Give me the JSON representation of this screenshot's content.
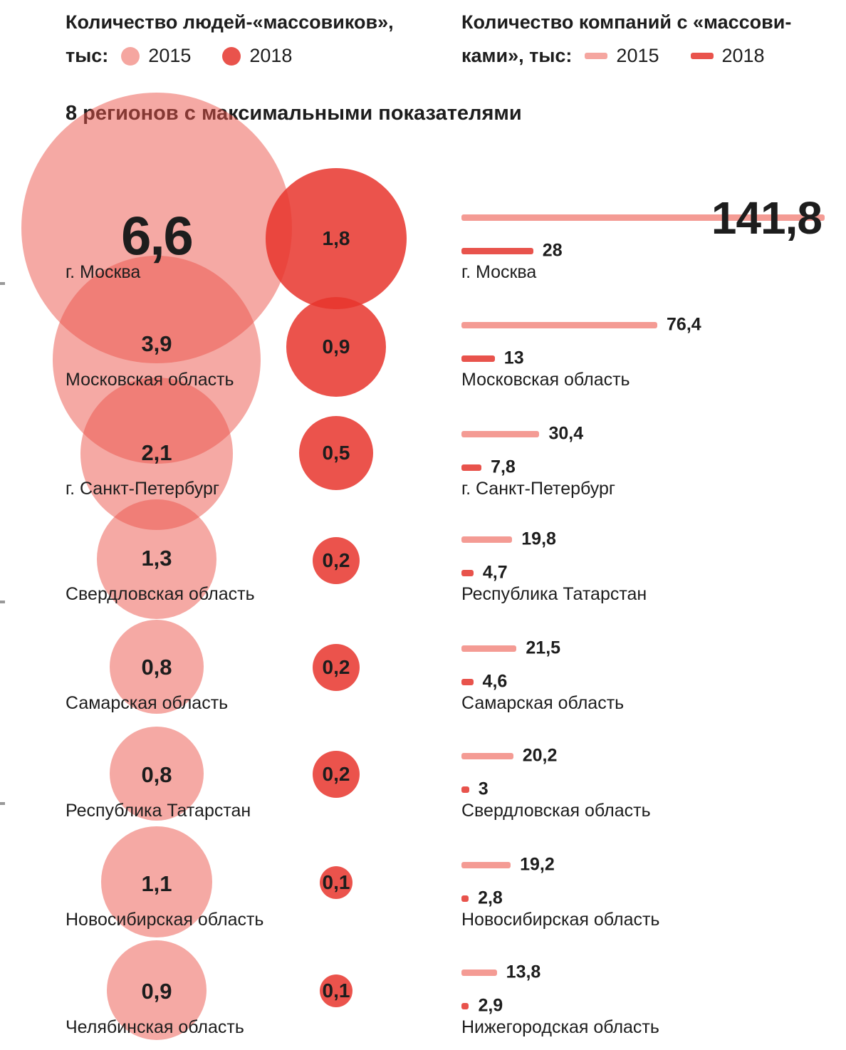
{
  "title": "8 регионов с максимальными показателями",
  "left_header": {
    "title_lines": [
      "Количество людей-«массовиков»,",
      "тыс:"
    ],
    "legend": [
      {
        "label": "2015"
      },
      {
        "label": "2018"
      }
    ]
  },
  "right_header": {
    "title_lines": [
      "Количество компаний с «массови-",
      "ками», тыс:"
    ],
    "legend": [
      {
        "label": "2015"
      },
      {
        "label": "2018"
      }
    ]
  },
  "colors": {
    "circle-2015": "rgba(236,84,74,0.5)",
    "circle-2018": "rgba(231,53,45,0.85)",
    "bar-2015": "#F49B94",
    "bar-2018": "#E8534C",
    "dot-2015": "#F5A6A0",
    "dot-2018": "#E9534C",
    "text": "#1D1D1D"
  },
  "chart_data": [
    {
      "type": "scatter",
      "subtype": "bubble-pairs",
      "title": "Количество людей-«массовиков», тыс",
      "series": [
        "2015",
        "2018"
      ],
      "unit": "тыс",
      "legend_position": "top-left",
      "rows": [
        {
          "region": "г. Москва",
          "y2015": "6,6",
          "y2018": "1,8"
        },
        {
          "region": "Московская область",
          "y2015": "3,9",
          "y2018": "0,9"
        },
        {
          "region": "г. Санкт-Петербург",
          "y2015": "2,1",
          "y2018": "0,5"
        },
        {
          "region": "Свердловская область",
          "y2015": "1,3",
          "y2018": "0,2"
        },
        {
          "region": "Самарская область",
          "y2015": "0,8",
          "y2018": "0,2"
        },
        {
          "region": "Республика Татарстан",
          "y2015": "0,8",
          "y2018": "0,2"
        },
        {
          "region": "Новосибирская область",
          "y2015": "1,1",
          "y2018": "0,1"
        },
        {
          "region": "Челябинская область",
          "y2015": "0,9",
          "y2018": "0,1"
        }
      ]
    },
    {
      "type": "bar",
      "subtype": "horizontal-bar-pairs",
      "title": "Количество компаний с «массовиками», тыс",
      "series": [
        "2015",
        "2018"
      ],
      "unit": "тыс",
      "xlim": [
        0,
        141.8
      ],
      "legend_position": "top-right",
      "rows": [
        {
          "region": "г. Москва",
          "y2015": "141,8",
          "y2018": "28"
        },
        {
          "region": "Московская область",
          "y2015": "76,4",
          "y2018": "13"
        },
        {
          "region": "г. Санкт-Петербург",
          "y2015": "30,4",
          "y2018": "7,8"
        },
        {
          "region": "Республика Татарстан",
          "y2015": "19,8",
          "y2018": "4,7"
        },
        {
          "region": "Самарская область",
          "y2015": "21,5",
          "y2018": "4,6"
        },
        {
          "region": "Свердловская область",
          "y2015": "20,2",
          "y2018": "3"
        },
        {
          "region": "Новосибирская область",
          "y2015": "19,2",
          "y2018": "2,8"
        },
        {
          "region": "Нижегородская область",
          "y2015": "13,8",
          "y2018": "2,9"
        }
      ]
    }
  ]
}
